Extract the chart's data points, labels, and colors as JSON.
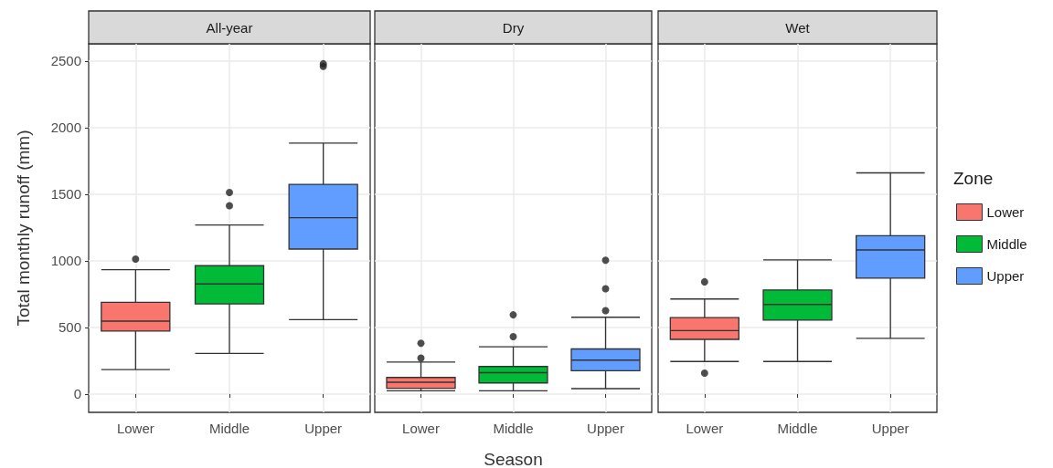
{
  "chart_data": [
    {
      "type": "box",
      "title": "All-year",
      "ylabel": "Total monthly runoff (mm)",
      "categories": [
        "Lower",
        "Middle",
        "Upper"
      ],
      "series": [
        {
          "color": "#f8766d",
          "boxes": [
            {
              "low": 184,
              "q1": 473,
              "median": 548,
              "q3": 689,
              "high": 934,
              "outliers": [
                1014
              ]
            },
            null,
            null
          ]
        },
        {
          "color": "#00ba38",
          "boxes": [
            null,
            {
              "low": 305,
              "q1": 677,
              "median": 827,
              "q3": 964,
              "high": 1270,
              "outliers": [
                1414,
                1514
              ]
            },
            null
          ]
        },
        {
          "color": "#619cff",
          "boxes": [
            null,
            null,
            {
              "low": 559,
              "q1": 1089,
              "median": 1325,
              "q3": 1575,
              "high": 1884,
              "outliers": [
                2460,
                2480
              ]
            }
          ]
        }
      ],
      "ylim": [
        -137,
        2630
      ],
      "yticks": [
        0,
        500,
        1000,
        1500,
        2000,
        2500
      ],
      "grid": true
    },
    {
      "type": "box",
      "title": "Dry",
      "xlabel": "Season",
      "categories": [
        "Lower",
        "Middle",
        "Upper"
      ],
      "series": [
        {
          "color": "#f8766d",
          "boxes": [
            {
              "low": 25,
              "q1": 43,
              "median": 89,
              "q3": 125,
              "high": 241,
              "outliers": [
                270,
                382
              ]
            },
            null,
            null
          ]
        },
        {
          "color": "#00ba38",
          "boxes": [
            null,
            {
              "low": 25,
              "q1": 84,
              "median": 161,
              "q3": 207,
              "high": 355,
              "outliers": [
                432,
                595
              ]
            },
            null
          ]
        },
        {
          "color": "#619cff",
          "boxes": [
            null,
            null,
            {
              "low": 41,
              "q1": 175,
              "median": 255,
              "q3": 339,
              "high": 577,
              "outliers": [
                627,
                791,
                1005
              ]
            }
          ]
        }
      ],
      "ylim": [
        -137,
        2630
      ],
      "yticks": [
        0,
        500,
        1000,
        1500,
        2000,
        2500
      ],
      "grid": true,
      "tick_labels": "x"
    },
    {
      "type": "box",
      "title": "Wet",
      "categories": [
        "Lower",
        "Middle",
        "Upper"
      ],
      "series": [
        {
          "name": "Lower",
          "color": "#f8766d",
          "boxes": [
            {
              "low": 245,
              "q1": 411,
              "median": 477,
              "q3": 575,
              "high": 714,
              "outliers": [
                157,
                843
              ]
            },
            null,
            null
          ]
        },
        {
          "name": "Middle",
          "color": "#00ba38",
          "boxes": [
            null,
            {
              "low": 245,
              "q1": 555,
              "median": 673,
              "q3": 782,
              "high": 1007
            },
            null
          ]
        },
        {
          "name": "Upper",
          "color": "#619cff",
          "boxes": [
            null,
            null,
            {
              "low": 418,
              "q1": 870,
              "median": 1082,
              "q3": 1189,
              "high": 1661
            }
          ]
        }
      ],
      "ylim": [
        -137,
        2630
      ],
      "yticks": [
        0,
        500,
        1000,
        1500,
        2000,
        2500
      ],
      "grid": true,
      "tick_labels": "x",
      "legend": "right",
      "legend_title": "Zone"
    }
  ]
}
